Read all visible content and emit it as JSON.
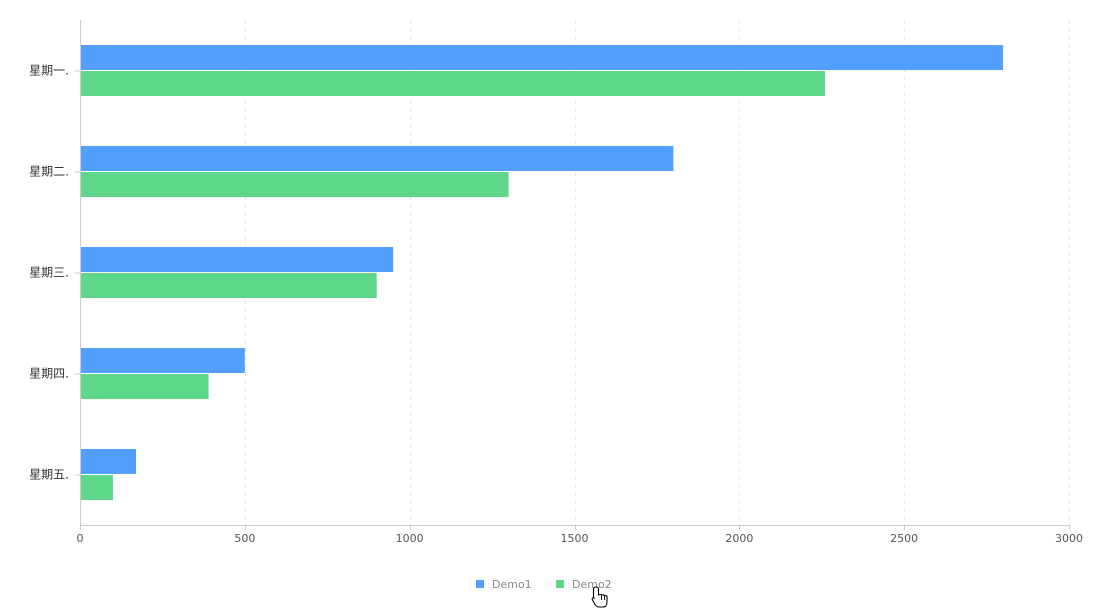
{
  "chart_data": {
    "type": "bar",
    "orientation": "horizontal",
    "categories": [
      "星期一.",
      "星期二.",
      "星期三.",
      "星期四.",
      "星期五."
    ],
    "series": [
      {
        "name": "Demo1",
        "color": "#539ffd",
        "values": [
          2800,
          1800,
          950,
          500,
          170
        ]
      },
      {
        "name": "Demo2",
        "color": "#5ed78b",
        "values": [
          2260,
          1300,
          900,
          390,
          100
        ]
      }
    ],
    "x_ticks": [
      "0",
      "500",
      "1000",
      "1500",
      "2000",
      "2500",
      "3000"
    ],
    "xlim": [
      0,
      3000
    ],
    "grid": true,
    "legend_position": "bottom-center",
    "title": "",
    "xlabel": "",
    "ylabel": ""
  },
  "legend": {
    "items": [
      {
        "label": "Demo1",
        "color": "#539ffd"
      },
      {
        "label": "Demo2",
        "color": "#5ed78b"
      }
    ]
  },
  "cursor": {
    "icon": "hand-pointer-icon"
  }
}
